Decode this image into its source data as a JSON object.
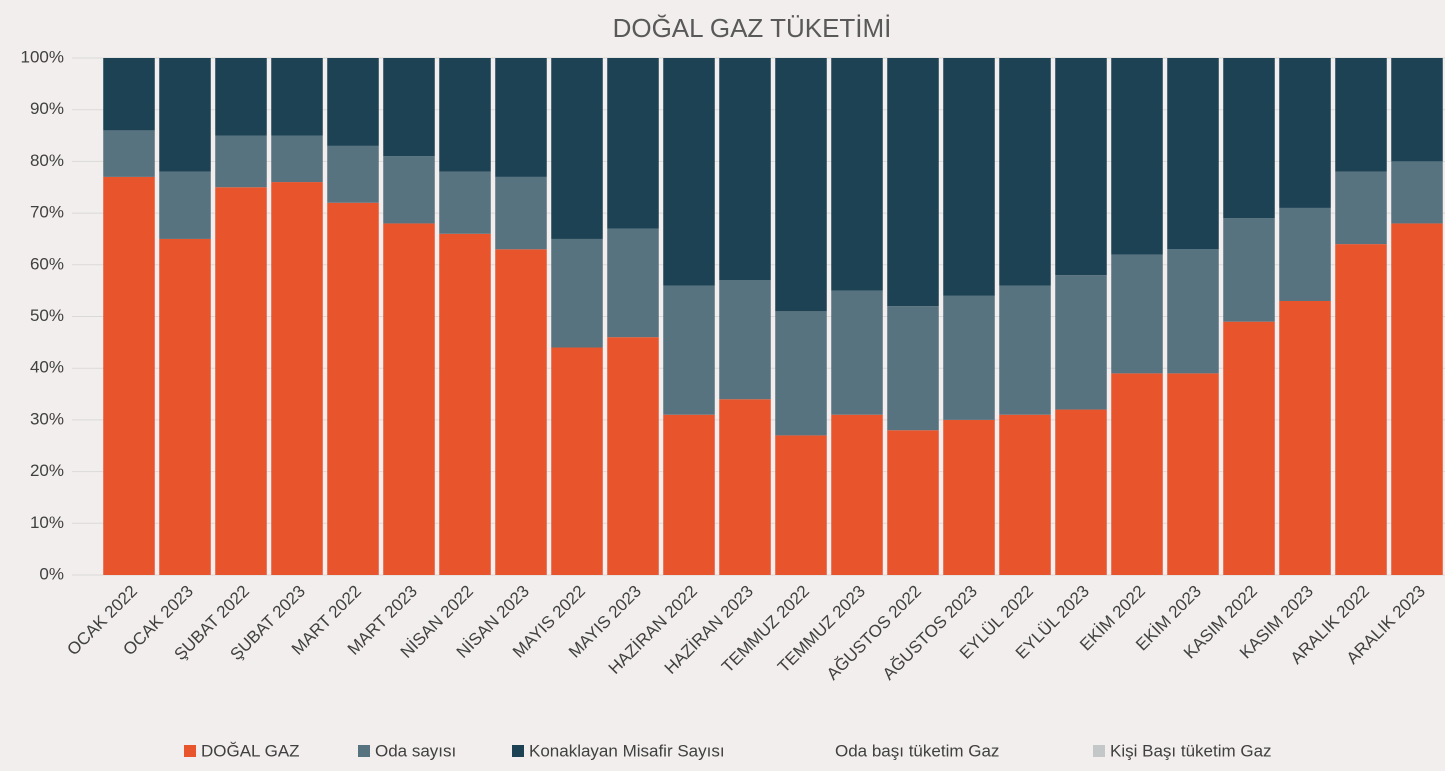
{
  "chart_data": {
    "type": "stacked_bar",
    "title": "DOĞAL GAZ TÜKETİMİ",
    "categories": [
      "OCAK 2022",
      "OCAK 2023",
      "ŞUBAT 2022",
      "ŞUBAT 2023",
      "MART 2022",
      "MART 2023",
      "NİSAN 2022",
      "NİSAN 2023",
      "MAYIS 2022",
      "MAYIS 2023",
      "HAZİRAN 2022",
      "HAZİRAN 2023",
      "TEMMUZ 2022",
      "TEMMUZ 2023",
      "AĞUSTOS 2022",
      "AĞUSTOS 2023",
      "EYLÜL 2022",
      "EYLÜL 2023",
      "EKİM 2022",
      "EKİM 2023",
      "KASIM 2022",
      "KASIM 2023",
      "ARALIK 2022",
      "ARALIK 2023"
    ],
    "series": [
      {
        "name": "DOĞAL GAZ",
        "color": "#e8542c",
        "values": [
          77,
          65,
          75,
          76,
          72,
          68,
          66,
          63,
          44,
          46,
          31,
          34,
          27,
          31,
          28,
          30,
          31,
          32,
          39,
          39,
          49,
          53,
          64,
          68
        ]
      },
      {
        "name": "Oda sayısı",
        "color": "#587380",
        "values": [
          9,
          13,
          10,
          9,
          11,
          13,
          12,
          14,
          21,
          21,
          25,
          23,
          24,
          24,
          24,
          24,
          25,
          26,
          23,
          24,
          20,
          18,
          14,
          12
        ]
      },
      {
        "name": "Konaklayan Misafir Sayısı",
        "color": "#1d4254",
        "values": [
          14,
          22,
          15,
          15,
          17,
          19,
          22,
          23,
          35,
          33,
          44,
          43,
          49,
          45,
          48,
          46,
          44,
          42,
          38,
          37,
          31,
          29,
          22,
          20
        ]
      },
      {
        "name": "Oda başı tüketim Gaz",
        "color": "#f2eeed",
        "values": [
          0,
          0,
          0,
          0,
          0,
          0,
          0,
          0,
          0,
          0,
          0,
          0,
          0,
          0,
          0,
          0,
          0,
          0,
          0,
          0,
          0,
          0,
          0,
          0
        ]
      },
      {
        "name": "Kişi Başı tüketim Gaz",
        "color": "#c3c7c8",
        "values": [
          0,
          0,
          0,
          0,
          0,
          0,
          0,
          0,
          0,
          0,
          0,
          0,
          0,
          0,
          0,
          0,
          0,
          0,
          0,
          0,
          0,
          0,
          0,
          0
        ]
      }
    ],
    "ylim": [
      0,
      100
    ],
    "yticks": [
      {
        "value": 0,
        "label": "0%"
      },
      {
        "value": 10,
        "label": "10%"
      },
      {
        "value": 20,
        "label": "20%"
      },
      {
        "value": 30,
        "label": "30%"
      },
      {
        "value": 40,
        "label": "40%"
      },
      {
        "value": 50,
        "label": "50%"
      },
      {
        "value": 60,
        "label": "60%"
      },
      {
        "value": 70,
        "label": "70%"
      },
      {
        "value": 80,
        "label": "80%"
      },
      {
        "value": 90,
        "label": "90%"
      },
      {
        "value": 100,
        "label": "100%"
      }
    ],
    "grid": true,
    "legend": "bottom"
  }
}
